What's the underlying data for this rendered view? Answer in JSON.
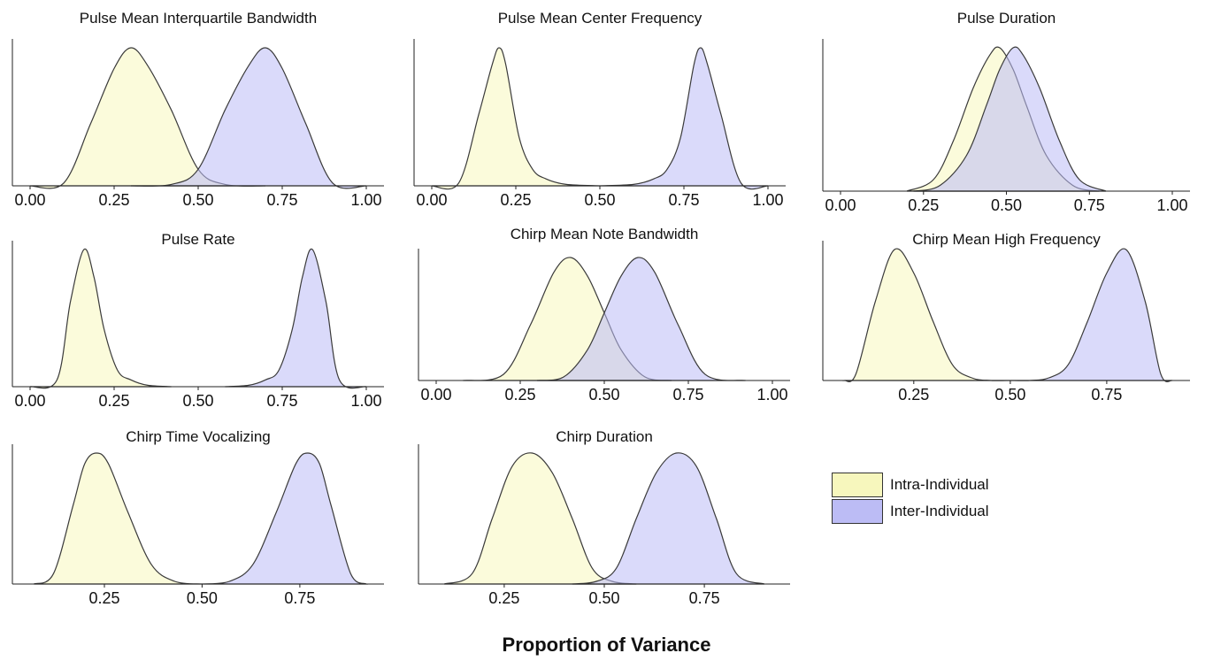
{
  "chart_data": [
    {
      "type": "area",
      "title": "Pulse Mean Interquartile Bandwidth",
      "xlim": [
        0,
        1
      ],
      "xticks": [
        0,
        0.25,
        0.5,
        0.75,
        1
      ],
      "tick_labels": [
        "0.00",
        "0.25",
        "0.50",
        "0.75",
        "1.00"
      ],
      "series": [
        {
          "name": "Intra-Individual",
          "x": [
            0.0,
            0.1,
            0.18,
            0.25,
            0.3,
            0.35,
            0.42,
            0.5,
            0.58,
            0.7
          ],
          "values": [
            0.0,
            0.02,
            0.45,
            0.85,
            1.0,
            0.87,
            0.55,
            0.12,
            0.01,
            0.0
          ]
        },
        {
          "name": "Inter-Individual",
          "x": [
            0.3,
            0.42,
            0.5,
            0.58,
            0.65,
            0.7,
            0.75,
            0.82,
            0.9,
            1.0
          ],
          "values": [
            0.0,
            0.01,
            0.12,
            0.55,
            0.87,
            1.0,
            0.85,
            0.45,
            0.02,
            0.0
          ]
        }
      ]
    },
    {
      "type": "area",
      "title": "Pulse Mean Center Frequency",
      "xlim": [
        0,
        1
      ],
      "xticks": [
        0,
        0.25,
        0.5,
        0.75,
        1
      ],
      "tick_labels": [
        "0.00",
        "0.25",
        "0.50",
        "0.75",
        "1.00"
      ],
      "series": [
        {
          "name": "Intra-Individual",
          "x": [
            0.0,
            0.08,
            0.14,
            0.18,
            0.2,
            0.22,
            0.26,
            0.3,
            0.34,
            0.4,
            0.5
          ],
          "values": [
            0.0,
            0.02,
            0.52,
            0.88,
            1.0,
            0.88,
            0.35,
            0.12,
            0.05,
            0.01,
            0.0
          ]
        },
        {
          "name": "Inter-Individual",
          "x": [
            0.5,
            0.6,
            0.66,
            0.7,
            0.74,
            0.78,
            0.8,
            0.82,
            0.86,
            0.92,
            1.0
          ],
          "values": [
            0.0,
            0.01,
            0.05,
            0.12,
            0.35,
            0.88,
            1.0,
            0.88,
            0.52,
            0.02,
            0.0
          ]
        }
      ]
    },
    {
      "type": "area",
      "title": "Pulse Duration",
      "xlim": [
        0,
        1
      ],
      "xticks": [
        0,
        0.25,
        0.5,
        0.75,
        1
      ],
      "tick_labels": [
        "0.00",
        "0.25",
        "0.50",
        "0.75",
        "1.00"
      ],
      "series": [
        {
          "name": "Intra-Individual",
          "x": [
            0.2,
            0.28,
            0.34,
            0.4,
            0.45,
            0.48,
            0.52,
            0.56,
            0.62,
            0.7,
            0.78
          ],
          "values": [
            0.0,
            0.08,
            0.35,
            0.72,
            0.95,
            1.0,
            0.85,
            0.6,
            0.25,
            0.04,
            0.0
          ]
        },
        {
          "name": "Inter-Individual",
          "x": [
            0.22,
            0.3,
            0.38,
            0.44,
            0.48,
            0.52,
            0.55,
            0.6,
            0.66,
            0.72,
            0.8
          ],
          "values": [
            0.0,
            0.04,
            0.25,
            0.6,
            0.85,
            1.0,
            0.95,
            0.72,
            0.35,
            0.08,
            0.0
          ]
        }
      ]
    },
    {
      "type": "area",
      "title": "Pulse Rate",
      "xlim": [
        0,
        1
      ],
      "xticks": [
        0,
        0.25,
        0.5,
        0.75,
        1
      ],
      "tick_labels": [
        "0.00",
        "0.25",
        "0.50",
        "0.75",
        "1.00"
      ],
      "series": [
        {
          "name": "Intra-Individual",
          "x": [
            0.0,
            0.08,
            0.12,
            0.16,
            0.19,
            0.22,
            0.26,
            0.3,
            0.35,
            0.42
          ],
          "values": [
            0.0,
            0.05,
            0.62,
            1.0,
            0.8,
            0.42,
            0.12,
            0.05,
            0.01,
            0.0
          ]
        },
        {
          "name": "Inter-Individual",
          "x": [
            0.58,
            0.65,
            0.7,
            0.74,
            0.78,
            0.81,
            0.84,
            0.88,
            0.92,
            1.0
          ],
          "values": [
            0.0,
            0.01,
            0.05,
            0.12,
            0.42,
            0.8,
            1.0,
            0.62,
            0.05,
            0.0
          ]
        }
      ]
    },
    {
      "type": "area",
      "title": "Chirp Mean Note Bandwidth",
      "xlim": [
        0,
        1
      ],
      "xticks": [
        0,
        0.25,
        0.5,
        0.75,
        1
      ],
      "tick_labels": [
        "0.00",
        "0.25",
        "0.50",
        "0.75",
        "1.00"
      ],
      "series": [
        {
          "name": "Intra-Individual",
          "x": [
            0.08,
            0.2,
            0.28,
            0.35,
            0.4,
            0.45,
            0.5,
            0.55,
            0.62,
            0.7
          ],
          "values": [
            0.0,
            0.05,
            0.45,
            0.88,
            1.0,
            0.85,
            0.55,
            0.25,
            0.03,
            0.0
          ]
        },
        {
          "name": "Inter-Individual",
          "x": [
            0.3,
            0.38,
            0.45,
            0.5,
            0.55,
            0.6,
            0.65,
            0.72,
            0.8,
            0.92
          ],
          "values": [
            0.0,
            0.03,
            0.25,
            0.55,
            0.85,
            1.0,
            0.88,
            0.45,
            0.05,
            0.0
          ]
        }
      ]
    },
    {
      "type": "area",
      "title": "Chirp Mean High Frequency",
      "xlim": [
        0.06,
        0.92
      ],
      "xticks": [
        0.25,
        0.5,
        0.75
      ],
      "tick_labels": [
        "0.25",
        "0.50",
        "0.75"
      ],
      "series": [
        {
          "name": "Intra-Individual",
          "x": [
            0.07,
            0.1,
            0.15,
            0.2,
            0.25,
            0.3,
            0.35,
            0.4,
            0.45,
            0.5
          ],
          "values": [
            0.0,
            0.05,
            0.6,
            1.0,
            0.82,
            0.45,
            0.12,
            0.02,
            0.0,
            0.0
          ]
        },
        {
          "name": "Inter-Individual",
          "x": [
            0.5,
            0.55,
            0.6,
            0.65,
            0.7,
            0.75,
            0.8,
            0.85,
            0.89,
            0.92
          ],
          "values": [
            0.0,
            0.0,
            0.02,
            0.12,
            0.45,
            0.82,
            1.0,
            0.6,
            0.05,
            0.0
          ]
        }
      ]
    },
    {
      "type": "area",
      "title": "Chirp Time Vocalizing",
      "xlim": [
        0.06,
        0.92
      ],
      "xticks": [
        0.25,
        0.5,
        0.75
      ],
      "tick_labels": [
        "0.25",
        "0.50",
        "0.75"
      ],
      "series": [
        {
          "name": "Intra-Individual",
          "x": [
            0.07,
            0.12,
            0.17,
            0.2,
            0.23,
            0.26,
            0.31,
            0.37,
            0.43,
            0.5
          ],
          "values": [
            0.0,
            0.08,
            0.6,
            0.92,
            1.0,
            0.92,
            0.55,
            0.15,
            0.02,
            0.0
          ]
        },
        {
          "name": "Inter-Individual",
          "x": [
            0.5,
            0.57,
            0.63,
            0.69,
            0.74,
            0.77,
            0.8,
            0.83,
            0.88,
            0.92
          ],
          "values": [
            0.0,
            0.02,
            0.15,
            0.55,
            0.92,
            1.0,
            0.92,
            0.6,
            0.08,
            0.0
          ]
        }
      ]
    },
    {
      "type": "area",
      "title": "Chirp Duration",
      "xlim": [
        0.08,
        0.92
      ],
      "xticks": [
        0.25,
        0.5,
        0.75
      ],
      "tick_labels": [
        "0.25",
        "0.50",
        "0.75"
      ],
      "series": [
        {
          "name": "Intra-Individual",
          "x": [
            0.1,
            0.17,
            0.22,
            0.27,
            0.32,
            0.37,
            0.42,
            0.47,
            0.52,
            0.58
          ],
          "values": [
            0.0,
            0.08,
            0.5,
            0.9,
            1.0,
            0.85,
            0.5,
            0.12,
            0.02,
            0.0
          ]
        },
        {
          "name": "Inter-Individual",
          "x": [
            0.42,
            0.48,
            0.53,
            0.58,
            0.63,
            0.68,
            0.73,
            0.78,
            0.83,
            0.9
          ],
          "values": [
            0.0,
            0.02,
            0.12,
            0.5,
            0.85,
            1.0,
            0.9,
            0.5,
            0.08,
            0.0
          ]
        }
      ]
    }
  ],
  "legend": {
    "items": [
      {
        "label": "Intra-Individual",
        "color": "#f7f7bd"
      },
      {
        "label": "Inter-Individual",
        "color": "#bcbcf5"
      }
    ]
  },
  "xlabel": "Proportion of Variance",
  "colors": {
    "intra_fill": "#f7f7bd",
    "inter_fill": "#bcbcf5",
    "outline": "#3a3a3a"
  }
}
